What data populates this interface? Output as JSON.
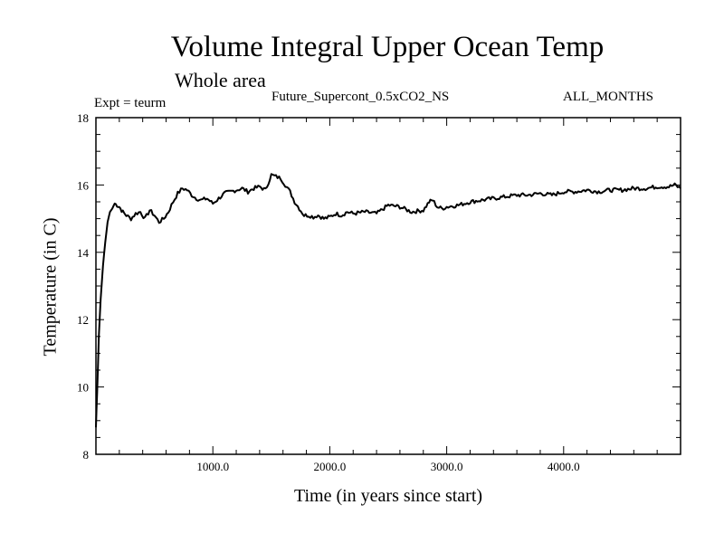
{
  "header": {
    "title": "Volume Integral Upper Ocean Temp",
    "subtitle": "Whole area",
    "expt": "Expt = teurm",
    "run": "Future_Supercont_0.5xCO2_NS",
    "months": "ALL_MONTHS"
  },
  "chart_data": {
    "type": "line",
    "xlabel": "Time (in years since start)",
    "ylabel": "Temperature (in C)",
    "xlim": [
      0,
      5000
    ],
    "ylim": [
      8,
      18
    ],
    "x_ticks": [
      1000,
      2000,
      3000,
      4000
    ],
    "x_tick_labels": [
      "1000.0",
      "2000.0",
      "3000.0",
      "4000.0"
    ],
    "y_ticks": [
      8,
      10,
      12,
      14,
      16,
      18
    ],
    "y_tick_labels": [
      "8",
      "10",
      "12",
      "14",
      "16",
      "18"
    ],
    "grid": false,
    "series": [
      {
        "color": "#000000",
        "x": [
          0,
          10,
          25,
          40,
          60,
          80,
          100,
          120,
          140,
          160,
          180,
          200,
          230,
          260,
          300,
          340,
          380,
          420,
          460,
          500,
          540,
          580,
          620,
          660,
          700,
          740,
          780,
          820,
          860,
          900,
          950,
          1000,
          1050,
          1100,
          1150,
          1200,
          1250,
          1300,
          1350,
          1400,
          1450,
          1500,
          1540,
          1580,
          1620,
          1660,
          1700,
          1740,
          1780,
          1820,
          1860,
          1900,
          1950,
          2000,
          2050,
          2100,
          2150,
          2200,
          2300,
          2400,
          2500,
          2600,
          2700,
          2800,
          2850,
          2880,
          2920,
          2960,
          3000,
          3100,
          3200,
          3300,
          3400,
          3500,
          3600,
          3700,
          3800,
          3900,
          4000,
          4100,
          4200,
          4300,
          4400,
          4500,
          4600,
          4700,
          4800,
          4900,
          4950,
          5000
        ],
        "y": [
          8.8,
          9.8,
          11.5,
          12.6,
          13.6,
          14.3,
          14.9,
          15.2,
          15.3,
          15.45,
          15.4,
          15.35,
          15.2,
          15.1,
          15.0,
          15.15,
          15.2,
          15.0,
          15.25,
          15.1,
          14.9,
          15.0,
          15.2,
          15.5,
          15.75,
          15.9,
          15.85,
          15.7,
          15.6,
          15.55,
          15.6,
          15.45,
          15.6,
          15.75,
          15.8,
          15.85,
          15.9,
          15.8,
          15.9,
          15.95,
          15.85,
          16.3,
          16.25,
          16.2,
          16.0,
          15.8,
          15.5,
          15.3,
          15.1,
          15.1,
          15.05,
          15.1,
          15.0,
          15.05,
          15.15,
          15.1,
          15.2,
          15.15,
          15.2,
          15.15,
          15.4,
          15.35,
          15.2,
          15.25,
          15.5,
          15.55,
          15.35,
          15.3,
          15.35,
          15.4,
          15.5,
          15.55,
          15.6,
          15.65,
          15.7,
          15.7,
          15.75,
          15.7,
          15.8,
          15.8,
          15.85,
          15.8,
          15.85,
          15.85,
          15.9,
          15.9,
          15.95,
          15.95,
          16.0,
          15.9
        ]
      }
    ]
  }
}
